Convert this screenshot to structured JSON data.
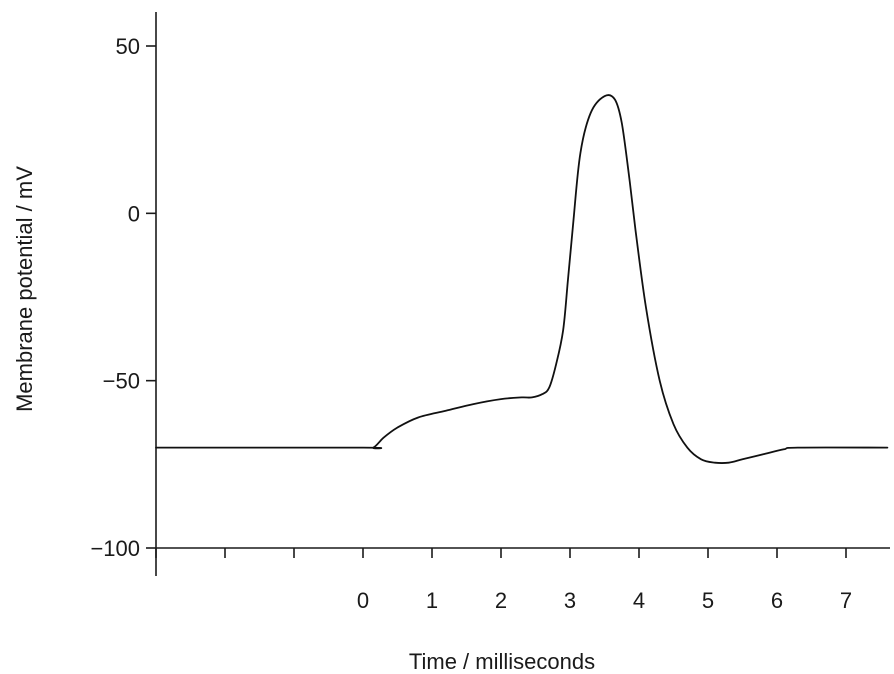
{
  "chart_data": {
    "type": "line",
    "title": "",
    "xlabel": "Time / milliseconds",
    "ylabel": "Membrane potential / mV",
    "xlim": [
      -3,
      7.6
    ],
    "ylim": [
      -100,
      60
    ],
    "x_ticks": [
      -3,
      -2,
      -1,
      0,
      1,
      2,
      3,
      4,
      5,
      6,
      7
    ],
    "x_tick_labels": [
      "",
      "",
      "",
      "0",
      "1",
      "2",
      "3",
      "4",
      "5",
      "6",
      "7"
    ],
    "y_ticks": [
      50,
      0,
      -50,
      -100
    ],
    "y_tick_labels": [
      "50",
      "0",
      "−50",
      "−100"
    ],
    "grid": false,
    "series": [
      {
        "x": [
          -3,
          0.0,
          0.15,
          0.3,
          0.5,
          0.8,
          1.2,
          1.6,
          2.0,
          2.3,
          2.45,
          2.6,
          2.7,
          2.8,
          2.9,
          2.97,
          3.05,
          3.15,
          3.3,
          3.5,
          3.65,
          3.75,
          3.85,
          3.95,
          4.1,
          4.3,
          4.5,
          4.7,
          4.9,
          5.1,
          5.3,
          5.5,
          5.8,
          6.1,
          6.3,
          7.6
        ],
        "y": [
          -70,
          -70,
          -70,
          -67,
          -64,
          -61,
          -59,
          -57,
          -55.5,
          -55,
          -55,
          -54,
          -52,
          -45,
          -35,
          -20,
          -2,
          18,
          30,
          35,
          34,
          27,
          12,
          -5,
          -28,
          -50,
          -63,
          -70,
          -73.5,
          -74.5,
          -74.5,
          -73.5,
          -72,
          -70.5,
          -70,
          -70
        ]
      }
    ]
  }
}
